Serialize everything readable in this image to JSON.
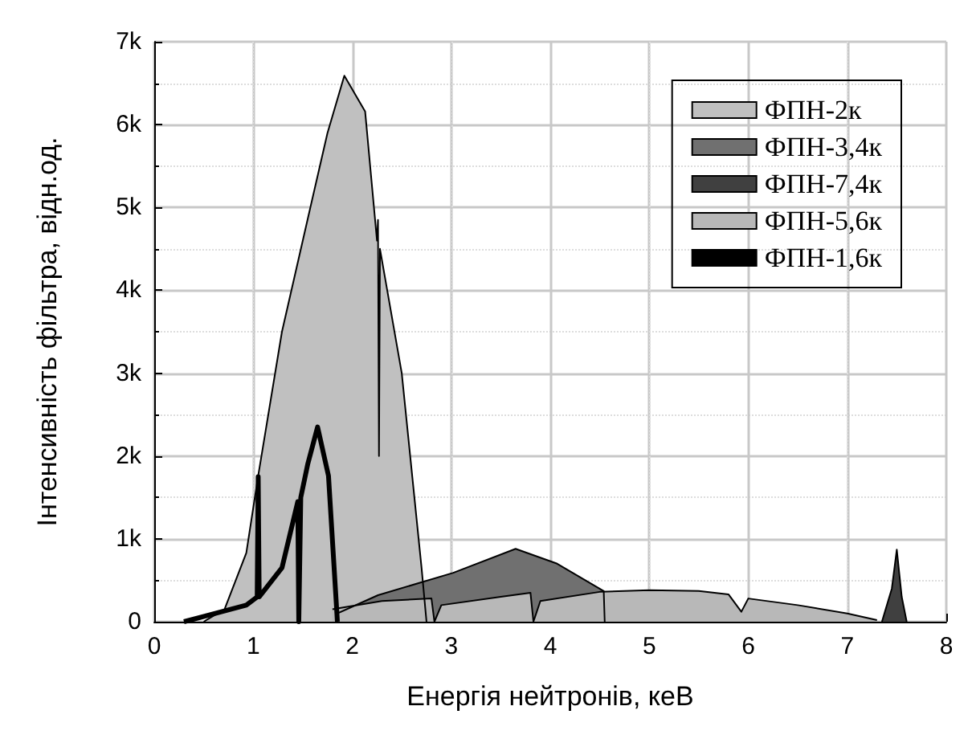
{
  "chart_data": {
    "type": "area",
    "xlabel": "Енергія нейтронів, кеВ",
    "ylabel": "Інтенсивність фільтра, відн.од.",
    "xlim": [
      0,
      8
    ],
    "xticks": [
      0,
      1,
      2,
      3,
      4,
      5,
      6,
      7,
      8
    ],
    "ylim": [
      0,
      7000
    ],
    "yticks": [
      0,
      {
        "value": 1000,
        "label": "1k"
      },
      {
        "value": 2000,
        "label": "2k"
      },
      {
        "value": 3000,
        "label": "3k"
      },
      {
        "value": 4000,
        "label": "4k"
      },
      {
        "value": 5000,
        "label": "5k"
      },
      {
        "value": 6000,
        "label": "6k"
      },
      {
        "value": 7000,
        "label": "7k"
      }
    ],
    "grid": true,
    "legend": "top right",
    "series": [
      {
        "name": "ФПН-2к",
        "color": "#c0c0c0",
        "x": [
          0.5,
          0.71,
          0.93,
          1.05,
          1.29,
          1.55,
          1.75,
          1.92,
          2.13,
          2.25,
          2.26,
          2.27,
          2.28,
          2.5,
          2.7,
          2.75
        ],
        "values": [
          0,
          150,
          830,
          1760,
          3500,
          4860,
          5900,
          6590,
          6160,
          4600,
          4850,
          2000,
          4500,
          3000,
          650,
          0
        ]
      },
      {
        "name": "ФПН-3,4к",
        "color": "#707070",
        "x": [
          1.85,
          2.26,
          3.02,
          3.65,
          4.07,
          4.54,
          4.55
        ],
        "values": [
          100,
          320,
          590,
          880,
          700,
          370,
          0
        ]
      },
      {
        "name": "ФПН-7,4к",
        "color": "#404040",
        "x": [
          7.35,
          7.45,
          7.5,
          7.55,
          7.6
        ],
        "values": [
          0,
          400,
          870,
          300,
          0
        ]
      },
      {
        "name": "ФПН-5,6к",
        "color": "#b8b8b8",
        "x": [
          1.8,
          2.3,
          2.8,
          2.83,
          2.9,
          3.5,
          3.8,
          3.83,
          3.9,
          4.5,
          5.0,
          5.5,
          5.8,
          5.93,
          6.0,
          6.5,
          7.0,
          7.3
        ],
        "values": [
          150,
          250,
          280,
          0,
          200,
          300,
          350,
          0,
          250,
          360,
          380,
          370,
          330,
          120,
          280,
          200,
          100,
          20
        ]
      },
      {
        "name": "ФПН-1,6к",
        "type": "line",
        "color": "#000000",
        "x": [
          0.3,
          0.93,
          1.04,
          1.05,
          1.06,
          1.29,
          1.45,
          1.46,
          1.47,
          1.48,
          1.55,
          1.65,
          1.76,
          1.84,
          1.85
        ],
        "values": [
          0,
          200,
          300,
          1750,
          300,
          650,
          1450,
          0,
          0,
          1500,
          1900,
          2350,
          1760,
          200,
          0
        ]
      }
    ]
  }
}
